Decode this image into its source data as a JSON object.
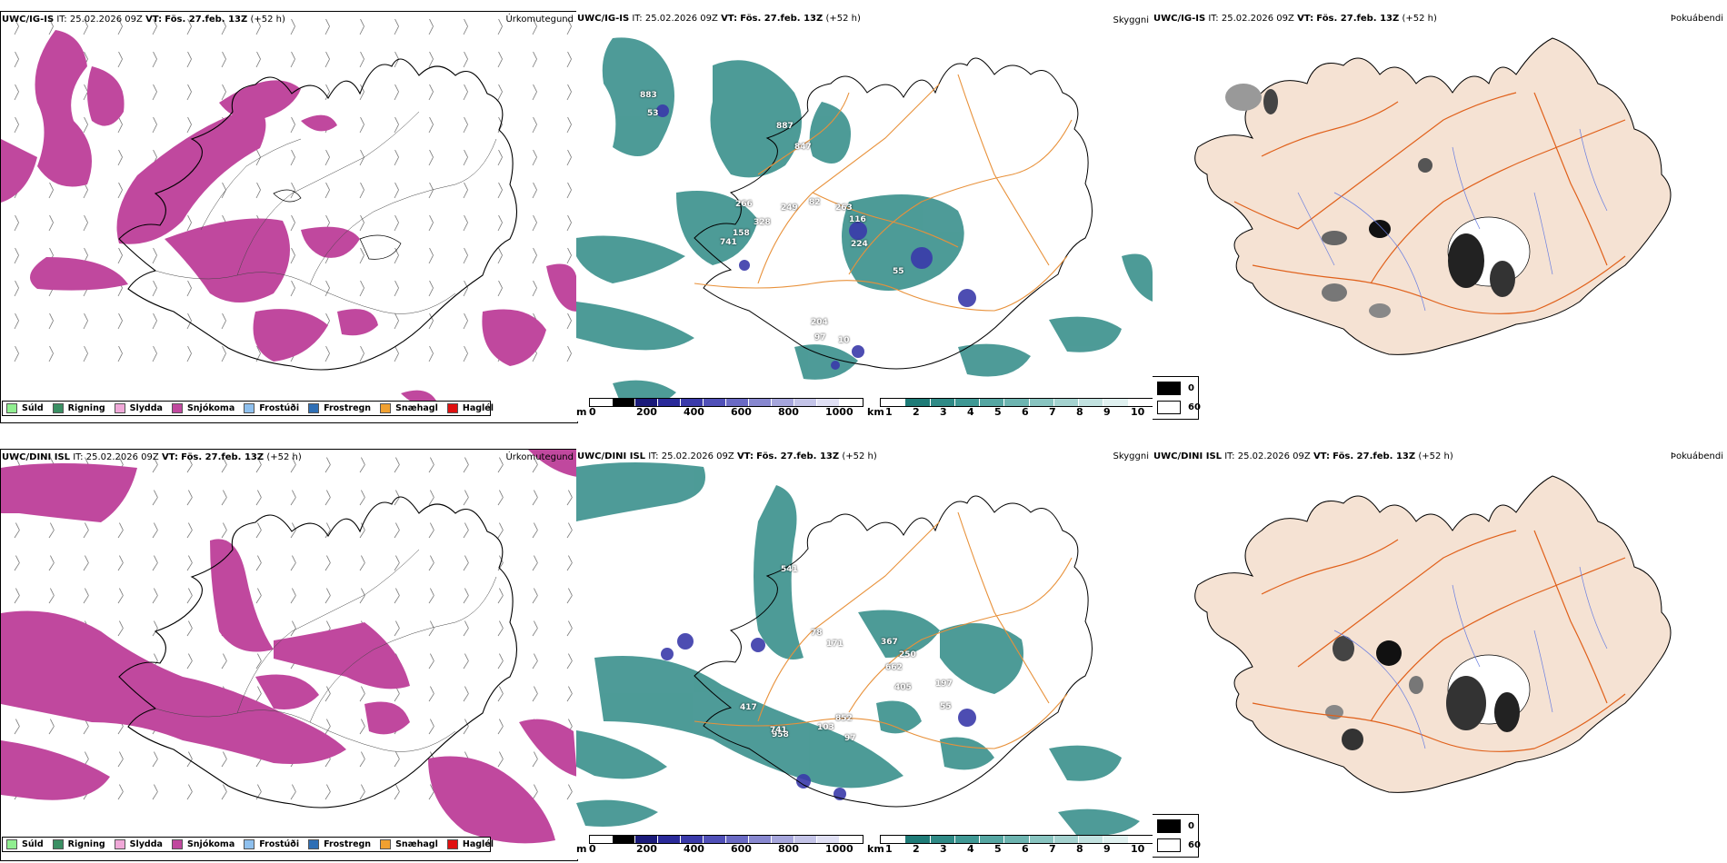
{
  "rows": [
    {
      "model": "UWC/IG-IS",
      "it_label": "IT:",
      "it": "25.02.2026 09Z",
      "vt_label": "VT:",
      "vt": "Fös. 27.feb. 13Z",
      "lead": "(+52 h)",
      "cloud_labels": [
        "883",
        "53",
        "887",
        "847",
        "266",
        "249",
        "82",
        "263",
        "116",
        "328",
        "158",
        "741",
        "224",
        "55",
        "204",
        "97",
        "10"
      ]
    },
    {
      "model": "UWC/DINI ISL",
      "it_label": "IT:",
      "it": "25.02.2026 09Z",
      "vt_label": "VT:",
      "vt": "Fös. 27.feb. 13Z",
      "lead": "(+52 h)",
      "cloud_labels": [
        "541",
        "78",
        "171",
        "367",
        "250",
        "662",
        "405",
        "197",
        "55",
        "417",
        "852",
        "103",
        "97",
        "958",
        "741"
      ]
    }
  ],
  "panel_titles": {
    "precip": "Úrkomutegund",
    "clouds": "Skyggni",
    "fog": "Þokuábendi"
  },
  "precip_legend": [
    {
      "label": "Súld",
      "color": "#90ee90"
    },
    {
      "label": "Rigning",
      "color": "#3a8f63"
    },
    {
      "label": "Slydda",
      "color": "#f0a8d8"
    },
    {
      "label": "Snjókoma",
      "color": "#c0489e"
    },
    {
      "label": "Frostúði",
      "color": "#8ec0ee"
    },
    {
      "label": "Frostregn",
      "color": "#2f6fb5"
    },
    {
      "label": "Snæhagl",
      "color": "#f0a030"
    },
    {
      "label": "Haglél",
      "color": "#e01010"
    }
  ],
  "cloud_base_bar": {
    "unit": "m",
    "ticks": [
      "0",
      "200",
      "400",
      "600",
      "800",
      "1000"
    ],
    "colors": [
      "#ffffff",
      "#000000",
      "#1a1a7a",
      "#2a2a9a",
      "#3a3aaa",
      "#5050b8",
      "#6a6ac4",
      "#8888d0",
      "#a6a6dc",
      "#c4c4e8",
      "#e0e0f4",
      "#ffffff"
    ]
  },
  "visibility_bar": {
    "unit": "km",
    "ticks": [
      "1",
      "2",
      "3",
      "4",
      "5",
      "6",
      "7",
      "8",
      "9",
      "10"
    ],
    "colors": [
      "#ffffff",
      "#1e7b77",
      "#2f8a86",
      "#3f9894",
      "#55a6a2",
      "#6db4b0",
      "#88c4c0",
      "#a4d2cf",
      "#c2e2e0",
      "#e0f1f0",
      "#ffffff"
    ]
  },
  "fog_key": [
    {
      "label": "0",
      "color": "#000000"
    },
    {
      "label": "60",
      "color": "#ffffff"
    }
  ],
  "map_colors": {
    "snow": "#c0489e",
    "land_fog": "#f5e2d3",
    "roads": "#e0601a",
    "roads_mid": "#e8913a",
    "rivers": "#6b7fe0",
    "visibility": "#2f8a86",
    "cloudbase": "#3a3aaa",
    "coast": "#000000"
  }
}
